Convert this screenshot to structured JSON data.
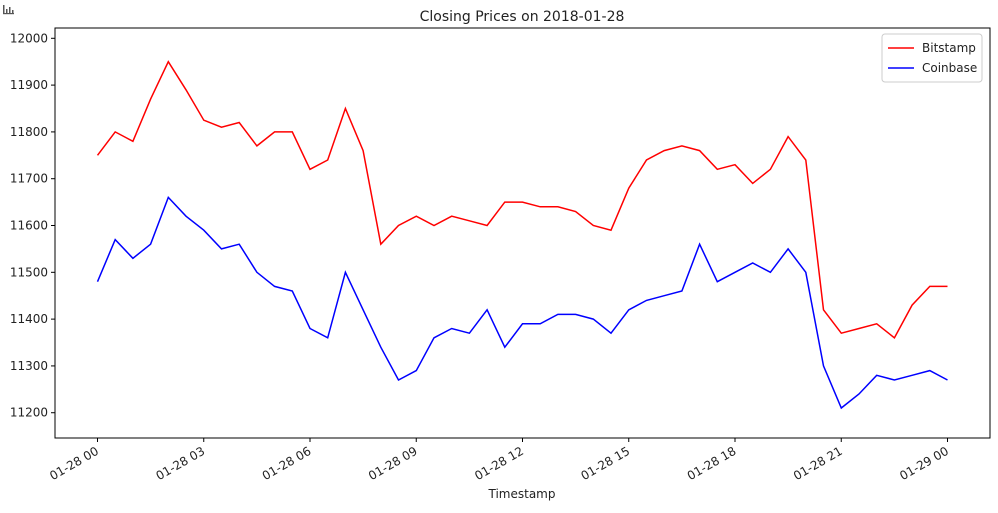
{
  "chart_data": {
    "type": "line",
    "title": "Closing Prices on 2018-01-28",
    "x_label": "Timestamp",
    "x": [
      0,
      0.5,
      1,
      1.5,
      2,
      2.5,
      3,
      3.5,
      4,
      4.5,
      5,
      5.5,
      6,
      6.5,
      7,
      7.5,
      8,
      8.5,
      9,
      9.5,
      10,
      10.5,
      11,
      11.5,
      12,
      12.5,
      13,
      13.5,
      14,
      14.5,
      15,
      15.5,
      16,
      16.5,
      17,
      17.5,
      18,
      18.5,
      19,
      19.5,
      20,
      20.5,
      21,
      21.5,
      22,
      22.5,
      23,
      23.5,
      24
    ],
    "series": [
      {
        "name": "Bitstamp",
        "color": "#ff0000",
        "values": [
          11750,
          11800,
          11780,
          11870,
          11950,
          11890,
          11825,
          11810,
          11820,
          11770,
          11800,
          11800,
          11720,
          11740,
          11850,
          11760,
          11560,
          11600,
          11620,
          11600,
          11620,
          11610,
          11600,
          11650,
          11650,
          11640,
          11640,
          11630,
          11600,
          11590,
          11680,
          11740,
          11760,
          11770,
          11760,
          11720,
          11730,
          11690,
          11720,
          11790,
          11740,
          11420,
          11370,
          11380,
          11390,
          11360,
          11430,
          11470,
          11470
        ]
      },
      {
        "name": "Coinbase",
        "color": "#0000ff",
        "values": [
          11480,
          11570,
          11530,
          11560,
          11660,
          11620,
          11590,
          11550,
          11560,
          11500,
          11470,
          11460,
          11380,
          11360,
          11500,
          11420,
          11340,
          11270,
          11290,
          11360,
          11380,
          11370,
          11420,
          11340,
          11390,
          11390,
          11410,
          11410,
          11400,
          11370,
          11420,
          11440,
          11450,
          11460,
          11560,
          11480,
          11500,
          11520,
          11500,
          11550,
          11500,
          11300,
          11210,
          11240,
          11280,
          11270,
          11280,
          11290,
          11270
        ]
      }
    ],
    "xlim": [
      -1.2,
      25.2
    ],
    "xticks": [
      {
        "value": 0,
        "label": "01-28 00"
      },
      {
        "value": 3,
        "label": "01-28 03"
      },
      {
        "value": 6,
        "label": "01-28 06"
      },
      {
        "value": 9,
        "label": "01-28 09"
      },
      {
        "value": 12,
        "label": "01-28 12"
      },
      {
        "value": 15,
        "label": "01-28 15"
      },
      {
        "value": 18,
        "label": "01-28 18"
      },
      {
        "value": 21,
        "label": "01-28 21"
      },
      {
        "value": 24,
        "label": "01-29 00"
      }
    ],
    "ylim": [
      11146,
      12022
    ],
    "yticks": [
      11200,
      11300,
      11400,
      11500,
      11600,
      11700,
      11800,
      11900,
      12000
    ],
    "legend": "upper right"
  }
}
